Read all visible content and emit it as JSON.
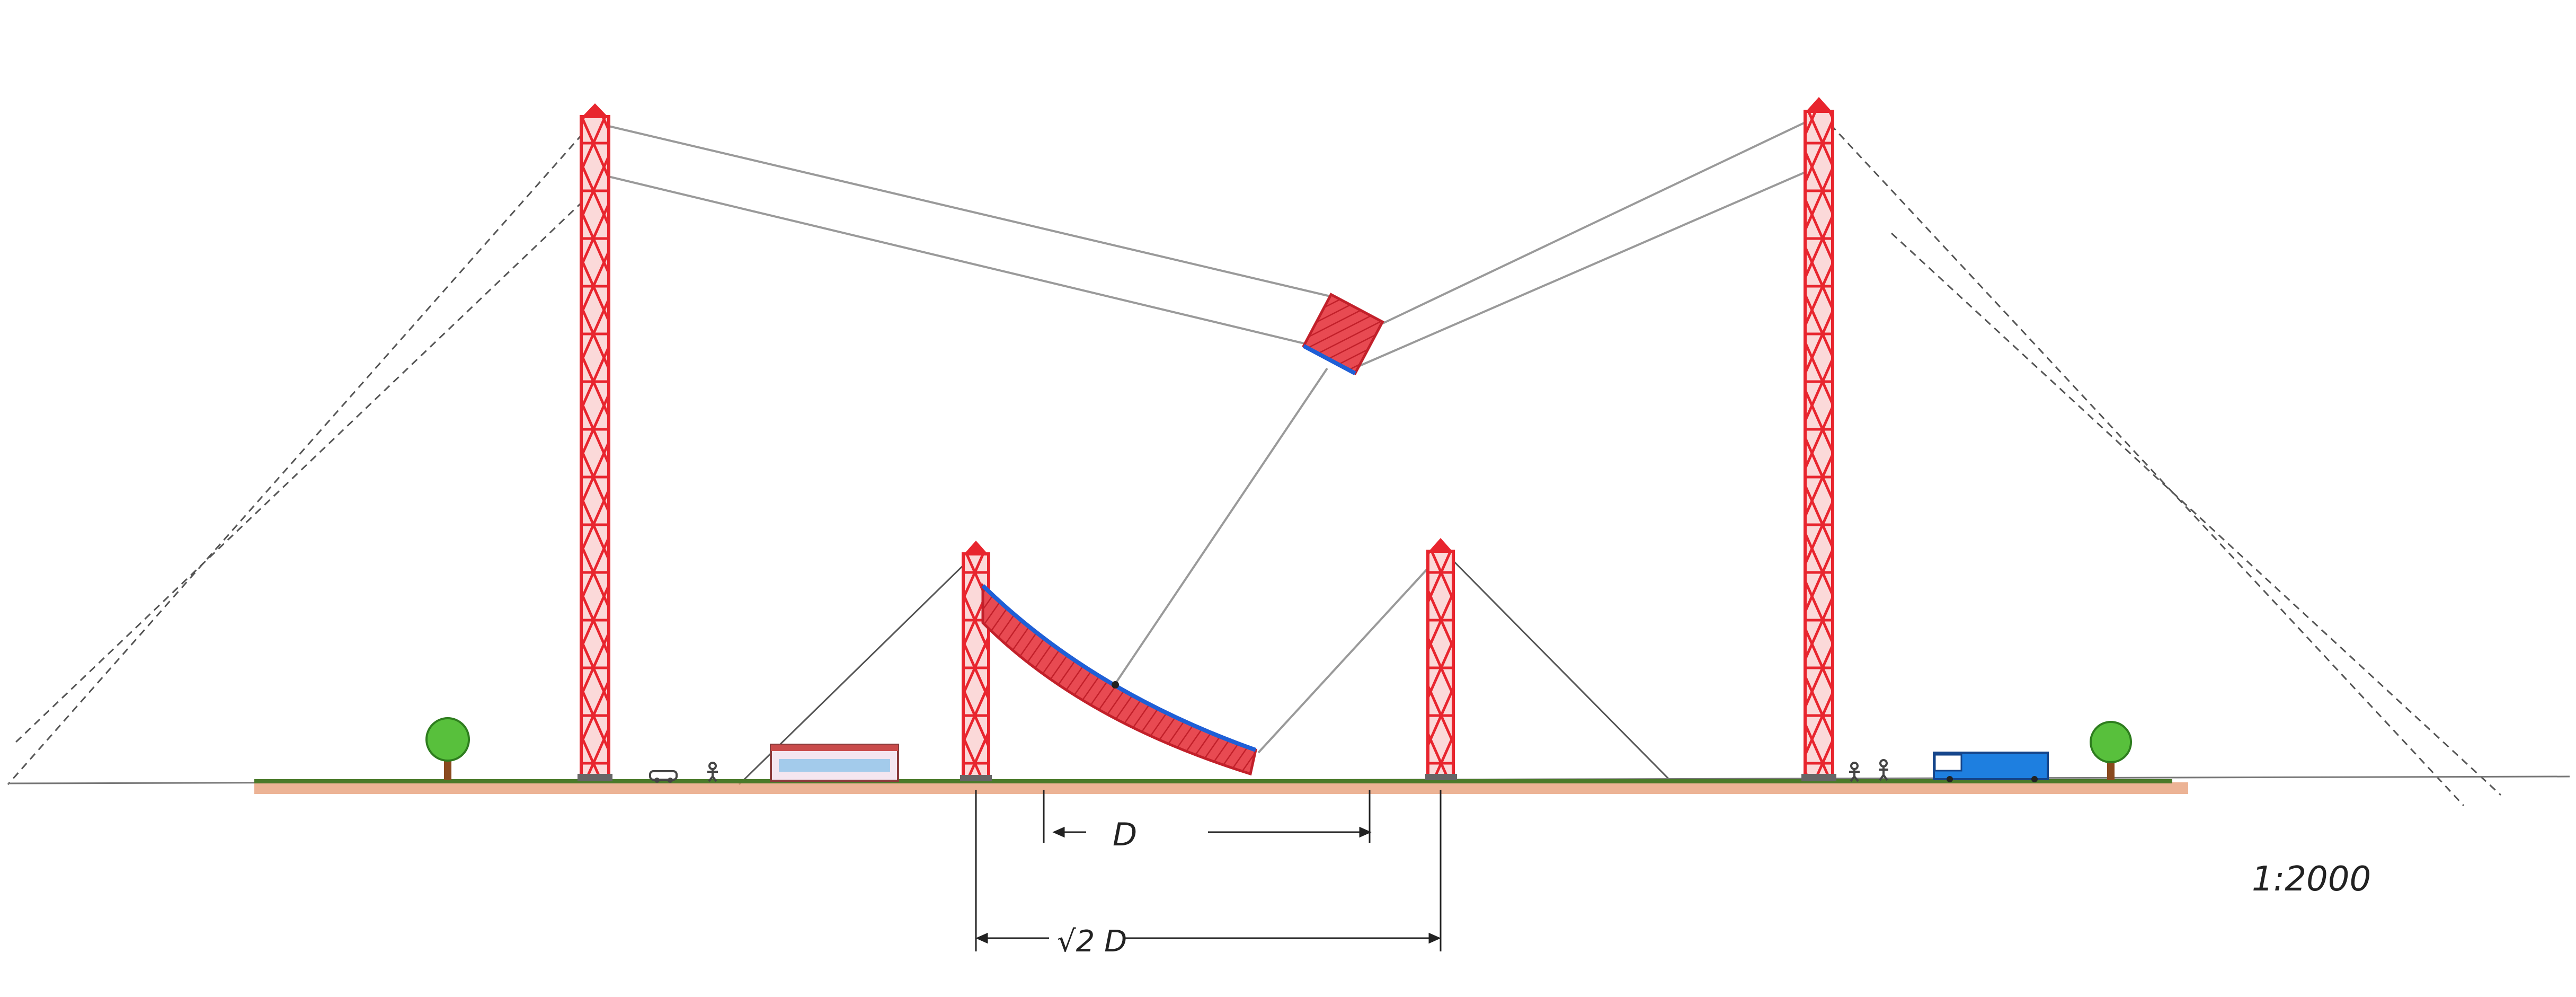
{
  "labels": {
    "distance": "D",
    "distance_sqrt2": "√2 D",
    "scale": "1:2000"
  },
  "colors": {
    "tower": "#e8252e",
    "tower_light": "#f7b7b7",
    "reflector_fill": "#e84a52",
    "reflector_edge": "#1f5fd6",
    "cable": "#9a9a9a",
    "guy_wire": "#222222",
    "ground_grass": "#4a7a2a",
    "ground_soil": "#d9824a",
    "tree_leaf": "#58c03c",
    "tree_trunk": "#8a4a1e",
    "building_roof": "#c94b4b",
    "building_windows": "#4aa3e0",
    "train_body": "#1e7fe0",
    "dimension": "#222222"
  },
  "icons": {
    "tree": "tree-icon",
    "car": "car-icon",
    "person": "person-icon",
    "building": "building-icon",
    "train": "train-icon"
  }
}
